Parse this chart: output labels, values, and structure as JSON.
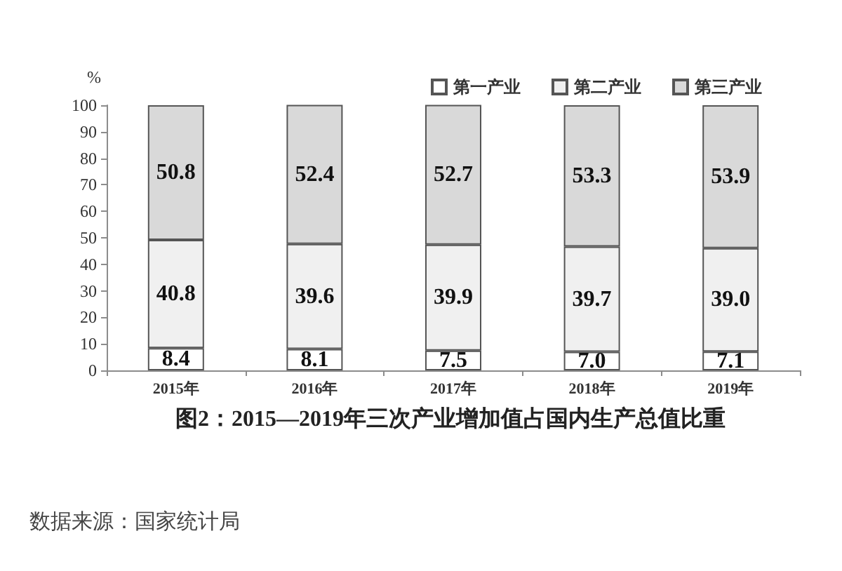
{
  "chart_data": {
    "type": "bar",
    "title": "图2：2015—2019年三次产业增加值占国内生产总值比重",
    "ylabel": "%",
    "annotations": [
      "数据来源：国家统计局"
    ],
    "categories": [
      "2015年",
      "2016年",
      "2017年",
      "2018年",
      "2019年"
    ],
    "stacked": true,
    "series": [
      {
        "name": "第一产业",
        "color": "#ffffff",
        "values": [
          8.4,
          8.1,
          7.5,
          7.0,
          7.1
        ],
        "value_labels": [
          "8.4",
          "8.1",
          "7.5",
          "7.0",
          "7.1"
        ]
      },
      {
        "name": "第二产业",
        "color": "#f0f0f0",
        "values": [
          40.8,
          39.6,
          39.9,
          39.7,
          39.0
        ],
        "value_labels": [
          "40.8",
          "39.6",
          "39.9",
          "39.7",
          "39.0"
        ]
      },
      {
        "name": "第三产业",
        "color": "#d9d9d9",
        "values": [
          50.8,
          52.4,
          52.7,
          53.3,
          53.9
        ],
        "value_labels": [
          "50.8",
          "52.4",
          "52.7",
          "53.3",
          "53.9"
        ]
      }
    ],
    "ylim": [
      0,
      100
    ],
    "yticks": [
      0,
      10,
      20,
      30,
      40,
      50,
      60,
      70,
      80,
      90,
      100
    ],
    "legend": "top right"
  }
}
